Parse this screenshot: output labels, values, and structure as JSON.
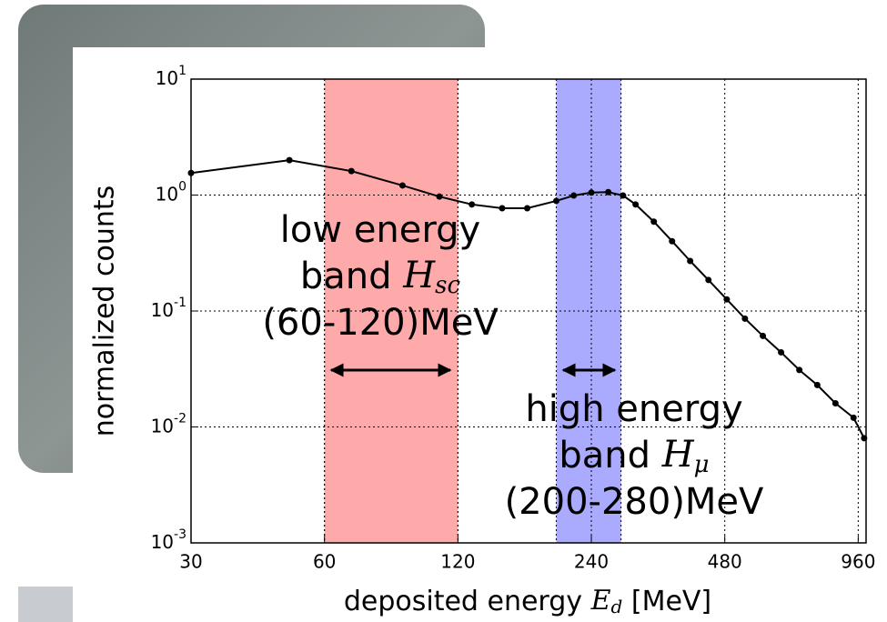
{
  "chart_data": {
    "type": "line",
    "ylabel": "normalized counts",
    "xlabel": {
      "text": "deposited energy",
      "symbol": "E",
      "subscript": "d",
      "unit": "[MeV]"
    },
    "xscale": "log",
    "yscale": "log",
    "grid": true,
    "color": "#000000",
    "xlim": [
      30,
      1000
    ],
    "ylim": [
      0.001,
      10
    ],
    "xticks": [
      30,
      60,
      120,
      240,
      480,
      960
    ],
    "yticks": [
      {
        "value": 0.001,
        "label": "10",
        "exponent": "-3"
      },
      {
        "value": 0.01,
        "label": "10",
        "exponent": "-2"
      },
      {
        "value": 0.1,
        "label": "10",
        "exponent": "-1"
      },
      {
        "value": 1,
        "label": "10",
        "exponent": "0"
      },
      {
        "value": 10,
        "label": "10",
        "exponent": "1"
      }
    ],
    "x": [
      30,
      50,
      69,
      90,
      109,
      129,
      151,
      172,
      200,
      219,
      240,
      262,
      283,
      302,
      332,
      365,
      401,
      441,
      485,
      533,
      585,
      643,
      707,
      776,
      853,
      937,
      990
    ],
    "values": [
      1.55,
      2.0,
      1.61,
      1.21,
      0.97,
      0.83,
      0.77,
      0.77,
      0.89,
      0.99,
      1.05,
      1.06,
      0.99,
      0.83,
      0.59,
      0.4,
      0.27,
      0.185,
      0.126,
      0.086,
      0.061,
      0.044,
      0.031,
      0.023,
      0.016,
      0.012,
      0.008
    ],
    "bands": [
      {
        "range": [
          60,
          120
        ],
        "color": "#ffaaaa"
      },
      {
        "range": [
          200,
          280
        ],
        "color": "#aaaaff"
      }
    ],
    "annotations": [
      {
        "lines": [
          {
            "text": "low energy"
          },
          {
            "text": "band",
            "symbol": "H",
            "subscript": "sc"
          },
          {
            "text": "(60-120)MeV"
          }
        ]
      },
      {
        "lines": [
          {
            "text": "high energy"
          },
          {
            "text": "band",
            "symbol": "H",
            "subscript": "μ"
          },
          {
            "text": "(200-280)MeV"
          }
        ]
      }
    ]
  }
}
